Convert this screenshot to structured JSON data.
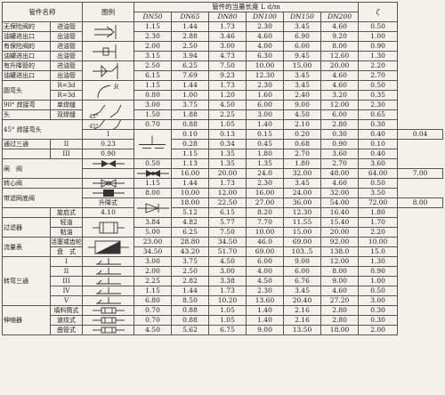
{
  "header": {
    "fitting_name": "管件名称",
    "diagram": "图例",
    "equiv_length": "管件的当量长度 L d/m",
    "zeta": "ζ",
    "dn": [
      "DN50",
      "DN65",
      "DN80",
      "DN100",
      "DN150",
      "DN200"
    ]
  },
  "rows": [
    {
      "name": "无保险阀的",
      "sub": "进油管",
      "v": [
        "1.15",
        "1.44",
        "1.73",
        "2.30",
        "3.45",
        "4.60"
      ],
      "z": "0.50"
    },
    {
      "name": "油罐进出口",
      "sub": "出油管",
      "v": [
        "2.30",
        "2.88",
        "3.46",
        "4.60",
        "6.90",
        "9.20"
      ],
      "z": "1.00"
    },
    {
      "name": "有保险阀的",
      "sub": "进油管",
      "v": [
        "2.00",
        "2.50",
        "3.00",
        "4.00",
        "6.00",
        "8.00"
      ],
      "z": "0.90"
    },
    {
      "name": "油罐进出口",
      "sub": "出油管",
      "v": [
        "3.15",
        "3.94",
        "4.73",
        "6.30",
        "9.45",
        "12.60"
      ],
      "z": "1.30"
    },
    {
      "name": "有升降管的",
      "sub": "进油管",
      "v": [
        "2.50",
        "6.25",
        "7.50",
        "10.00",
        "15.00",
        "20.00"
      ],
      "z": "2.20"
    },
    {
      "name": "油罐进出口",
      "sub": "出油管",
      "v": [
        "6.15",
        "7.69",
        "9.23",
        "12.30",
        "3.45",
        "4.60"
      ],
      "z": "2.70"
    },
    {
      "name": "圆弯头",
      "sub": "R=3d",
      "v": [
        "1.15",
        "1.44",
        "1.73",
        "2.30",
        "3.45",
        "4.60"
      ],
      "z": "0.50"
    },
    {
      "name": "",
      "sub": "R=3d",
      "v": [
        "0.80",
        "1.00",
        "1.20",
        "1.60",
        "2.40",
        "3.20"
      ],
      "z": "0.35"
    },
    {
      "name": "90° 焊接弯",
      "sub": "单焊缝",
      "v": [
        "3.00",
        "3.75",
        "4.50",
        "6.00",
        "9.00",
        "12.00"
      ],
      "z": "2.30"
    },
    {
      "name": "头",
      "sub": "双焊缝",
      "v": [
        "1.50",
        "1.88",
        "2.25",
        "3.00",
        "4.50",
        "6.00"
      ],
      "z": "0.65"
    },
    {
      "name": "45° 焊接弯头",
      "sub": "",
      "v": [
        "0.70",
        "0.88",
        "1.05",
        "1.40",
        "2.10",
        "2.80"
      ],
      "z": "0.30"
    },
    {
      "name": "",
      "sub": "I",
      "v": [
        "0.10",
        "0.13",
        "0.15",
        "0.20",
        "0.30",
        "0.40"
      ],
      "z": "0.04"
    },
    {
      "name": "通过三通",
      "sub": "II",
      "v": [
        "0.23",
        "0.28",
        "0.34",
        "0.45",
        "0.68",
        "0.90"
      ],
      "z": "0.10"
    },
    {
      "name": "",
      "sub": "III",
      "v": [
        "0.90",
        "1.15",
        "1.35",
        "1.80",
        "2.70",
        "3.60"
      ],
      "z": "0.40"
    },
    {
      "name": "闸　阀",
      "sub": "",
      "v": [
        "0.50",
        "1.13",
        "1.35",
        "1.35",
        "1.80",
        "2.70"
      ],
      "z": "3.60"
    },
    {
      "name": "截止阀",
      "sub": "",
      "v": [
        "16.00",
        "20.00",
        "24.0",
        "32.00",
        "48.00",
        "64.00"
      ],
      "z": "7.00"
    },
    {
      "name": "转心阀",
      "sub": "",
      "v": [
        "1.15",
        "1.44",
        "1.73",
        "2.30",
        "3.45",
        "4.60"
      ],
      "z": "0.50"
    },
    {
      "name": "带滤网底阀",
      "sub": "",
      "v": [
        "8.00",
        "10.00",
        "12.00",
        "16.00",
        "24.00",
        "32.00"
      ],
      "z": "3.50"
    },
    {
      "name": "单向阀",
      "sub": "升降式",
      "v": [
        "18.00",
        "22.50",
        "27.00",
        "36.00",
        "54.00",
        "72.00"
      ],
      "z": "8.00"
    },
    {
      "name": "",
      "sub": "旋启式",
      "v": [
        "4.10",
        "5.12",
        "6.15",
        "8.20",
        "12.30",
        "16.40"
      ],
      "z": "1.80"
    },
    {
      "name": "过滤器",
      "sub": "轻油",
      "v": [
        "3.84",
        "4.82",
        "5.77",
        "7.70",
        "11.55",
        "15.40"
      ],
      "z": "1.70"
    },
    {
      "name": "",
      "sub": "粘油",
      "v": [
        "5.00",
        "6.25",
        "7.50",
        "10.00",
        "15.00",
        "20.00"
      ],
      "z": "2.20"
    },
    {
      "name": "流量表",
      "sub": "活塞或齿轮式",
      "v": [
        "23.00",
        "28.80",
        "34.50",
        "46.0",
        "69.00",
        "92.00"
      ],
      "z": "10.00"
    },
    {
      "name": "",
      "sub": "盘　式",
      "v": [
        "34.50",
        "43.20",
        "51.70",
        "69.00",
        "103..5",
        "138.0"
      ],
      "z": "15.0"
    },
    {
      "name": "",
      "sub": "I",
      "v": [
        "3.00",
        "3.75",
        "4.50",
        "6.00",
        "9.00",
        "12.00"
      ],
      "z": "1.30"
    },
    {
      "name": "",
      "sub": "II",
      "v": [
        "2.00",
        "2.50",
        "3.00",
        "4.00",
        "6.00",
        "8.00"
      ],
      "z": "0.90"
    },
    {
      "name": "转弯三通",
      "sub": "III",
      "v": [
        "2.25",
        "2.82",
        "3.38",
        "4.50",
        "6.76",
        "9.00"
      ],
      "z": "1.00"
    },
    {
      "name": "",
      "sub": "IV",
      "v": [
        "1.15",
        "1.44",
        "1.73",
        "2.30",
        "3.45",
        "4.60"
      ],
      "z": "0.50"
    },
    {
      "name": "",
      "sub": "V",
      "v": [
        "6.80",
        "8.50",
        "10.20",
        "13.60",
        "20.40",
        "27.20"
      ],
      "z": "3.00"
    },
    {
      "name": "伸缩器",
      "sub": "填料筒式",
      "v": [
        "0.70",
        "0.88",
        "1.05",
        "1.40",
        "2.16",
        "2.80"
      ],
      "z": "0.30"
    },
    {
      "name": "",
      "sub": "波纹式",
      "v": [
        "0.70",
        "0.88",
        "1.05",
        "1.40",
        "2.16",
        "2.80"
      ],
      "z": "0.30"
    },
    {
      "name": "",
      "sub": "曲管式",
      "v": [
        "4.50",
        "5.62",
        "6.75",
        "9.00",
        "13.50",
        "18.00"
      ],
      "z": "2.00"
    }
  ],
  "labels": {
    "r_label": "R",
    "angle_45": "45°"
  },
  "icons": [
    "tank-inlet-icon",
    "tank-inlet-valve-icon",
    "tank-riser-icon",
    "bend-icon",
    "welded-elbow-icon",
    "tee-straight-icon",
    "gate-valve-icon",
    "globe-valve-icon",
    "plug-valve-icon",
    "foot-valve-icon",
    "check-valve-icon",
    "filter-icon",
    "flow-meter-icon",
    "tee-branch-icon",
    "expansion-joint-icon"
  ]
}
